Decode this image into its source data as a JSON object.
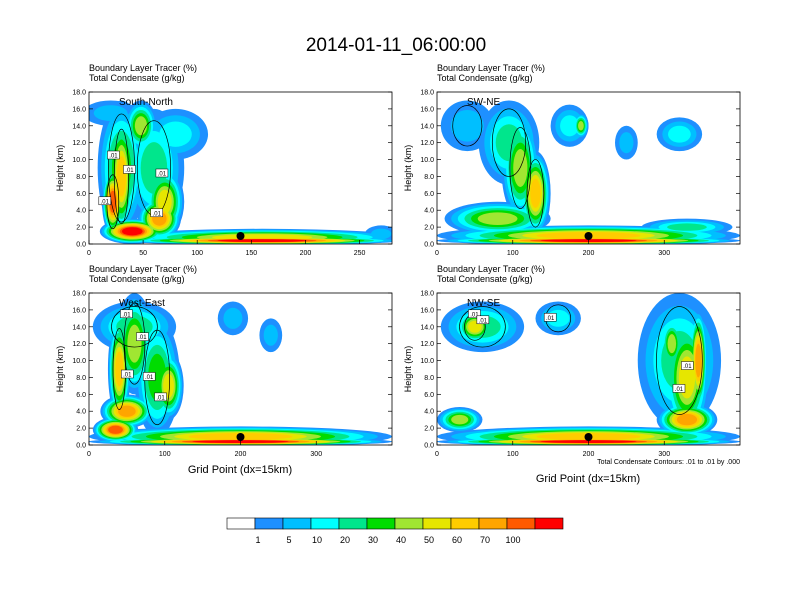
{
  "title": "2014-01-11_06:00:00",
  "chart_data": [
    {
      "type": "heatmap",
      "panel": "top-left",
      "label": "South-North",
      "header_line1": "Boundary Layer Tracer    (%)",
      "header_line2": "Total Condensate    (g/kg)",
      "ylabel": "Height (km)",
      "xlabel": "",
      "yticks": [
        "0.0",
        "2.0",
        "4.0",
        "6.0",
        "8.0",
        "10.0",
        "12.0",
        "14.0",
        "16.0",
        "18.0"
      ],
      "xticks": [
        "0",
        "50",
        "100",
        "150",
        "200",
        "250"
      ],
      "xlim": [
        0,
        280
      ],
      "ylim": [
        0,
        18
      ],
      "marker_x": 140,
      "contour_labels": [
        ".01",
        ".01",
        ".01",
        ".01",
        ".01"
      ]
    },
    {
      "type": "heatmap",
      "panel": "top-right",
      "label": "SW-NE",
      "header_line1": "Boundary Layer Tracer    (%)",
      "header_line2": "Total Condensate    (g/kg)",
      "ylabel": "Height (km)",
      "xlabel": "",
      "yticks": [
        "0.0",
        "2.0",
        "4.0",
        "6.0",
        "8.0",
        "10.0",
        "12.0",
        "14.0",
        "16.0",
        "18.0"
      ],
      "xticks": [
        "0",
        "100",
        "200",
        "300"
      ],
      "xlim": [
        0,
        400
      ],
      "ylim": [
        0,
        18
      ],
      "marker_x": 200,
      "contour_labels": []
    },
    {
      "type": "heatmap",
      "panel": "bottom-left",
      "label": "West-East",
      "header_line1": "Boundary Layer Tracer    (%)",
      "header_line2": "Total Condensate    (g/kg)",
      "ylabel": "Height (km)",
      "xlabel": "Grid Point (dx=15km)",
      "yticks": [
        "0.0",
        "2.0",
        "4.0",
        "6.0",
        "8.0",
        "10.0",
        "12.0",
        "14.0",
        "16.0",
        "18.0"
      ],
      "xticks": [
        "0",
        "100",
        "200",
        "300"
      ],
      "xlim": [
        0,
        400
      ],
      "ylim": [
        0,
        18
      ],
      "marker_x": 200,
      "contour_labels": [
        ".01",
        ".01",
        ".01",
        ".01",
        ".01"
      ]
    },
    {
      "type": "heatmap",
      "panel": "bottom-right",
      "label": "NW-SE",
      "header_line1": "Boundary Layer Tracer    (%)",
      "header_line2": "Total Condensate    (g/kg)",
      "ylabel": "Height (km)",
      "xlabel": "Grid Point (dx=15km)",
      "yticks": [
        "0.0",
        "2.0",
        "4.0",
        "6.0",
        "8.0",
        "10.0",
        "12.0",
        "14.0",
        "16.0",
        "18.0"
      ],
      "xticks": [
        "0",
        "100",
        "200",
        "300"
      ],
      "xlim": [
        0,
        400
      ],
      "ylim": [
        0,
        18
      ],
      "marker_x": 200,
      "contour_labels": [
        ".01",
        ".01",
        ".01",
        ".01",
        ".01"
      ],
      "footnote": "Total Condensate Contours: .01 to .01 by .000"
    }
  ],
  "colorbar": {
    "labels": [
      "1",
      "5",
      "10",
      "20",
      "30",
      "40",
      "50",
      "60",
      "70",
      "100"
    ],
    "colors": [
      "#ffffff",
      "#1e90ff",
      "#00bfff",
      "#00ffff",
      "#00e68c",
      "#00dc00",
      "#a0e632",
      "#e6e600",
      "#ffcc00",
      "#ffa500",
      "#ff5a00",
      "#ff0000"
    ]
  }
}
